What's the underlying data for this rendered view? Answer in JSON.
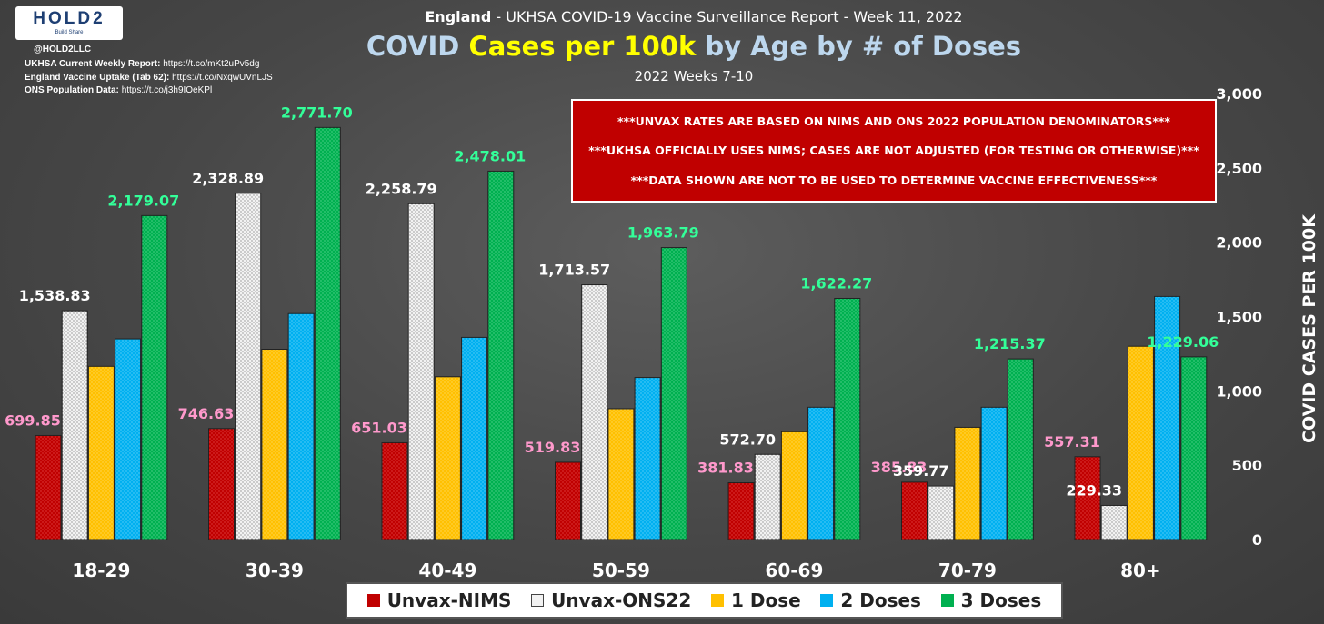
{
  "logo": {
    "text": "HOLD2",
    "tagline": "Build Share"
  },
  "handle": "@HOLD2LLC",
  "sources": [
    {
      "label": "UKHSA Current Weekly Report:",
      "url": "https://t.co/mKt2uPv5dg"
    },
    {
      "label": "England Vaccine Uptake (Tab 62):",
      "url": "https://t.co/NxqwUVnLJS"
    },
    {
      "label": "ONS Population Data:",
      "url": "https://t.co/j3h9IOeKPl"
    }
  ],
  "header": {
    "suptitle_bold": "England",
    "suptitle_rest": " - UKHSA COVID-19 Vaccine Surveillance Report - Week 11, 2022",
    "title_part1": "COVID ",
    "title_highlight": "Cases per 100k",
    "title_part2": " by Age by # of Doses",
    "subtitle": "2022 Weeks 7-10"
  },
  "notice_lines": [
    "***UNVAX RATES ARE BASED ON NIMS AND ONS 2022 POPULATION DENOMINATORS***",
    "***UKHSA OFFICIALLY USES NIMS; CASES ARE NOT ADJUSTED (FOR TESTING OR OTHERWISE)***",
    "***DATA SHOWN ARE NOT TO BE USED TO DETERMINE VACCINE EFFECTIVENESS***"
  ],
  "colors": {
    "unvax_nims": "#c00000",
    "unvax_ons": "#f2f2f2",
    "dose1": "#ffc000",
    "dose2": "#00b0f0",
    "dose3": "#00b050",
    "label_pink": "#ff99cc",
    "label_white": "#ffffff",
    "label_green": "#33ff99"
  },
  "chart_data": {
    "type": "bar",
    "title": "COVID Cases per 100k by Age by # of Doses",
    "subtitle": "2022 Weeks 7-10",
    "categories": [
      "18-29",
      "30-39",
      "40-49",
      "50-59",
      "60-69",
      "70-79",
      "80+"
    ],
    "series": [
      {
        "name": "Unvax-NIMS",
        "values": [
          699.85,
          746.63,
          651.03,
          519.83,
          381.83,
          385.83,
          557.31
        ],
        "labels": [
          "699.85",
          "746.63",
          "651.03",
          "519.83",
          "381.83",
          "385.83",
          "557.31"
        ]
      },
      {
        "name": "Unvax-ONS22",
        "values": [
          1538.83,
          2328.89,
          2258.79,
          1713.57,
          572.7,
          359.77,
          229.33
        ],
        "labels": [
          "1,538.83",
          "2,328.89",
          "2,258.79",
          "1,713.57",
          "572.70",
          "359.77",
          "229.33"
        ]
      },
      {
        "name": "1 Dose",
        "values": [
          1165,
          1280,
          1095,
          880,
          725,
          755,
          1300
        ]
      },
      {
        "name": "2 Doses",
        "values": [
          1350,
          1520,
          1360,
          1090,
          890,
          890,
          1635
        ]
      },
      {
        "name": "3 Doses",
        "values": [
          2179.07,
          2771.7,
          2478.01,
          1963.79,
          1622.27,
          1215.37,
          1229.06
        ],
        "labels": [
          "2,179.07",
          "2,771.70",
          "2,478.01",
          "1,963.79",
          "1,622.27",
          "1,215.37",
          "1,229.06"
        ]
      }
    ],
    "ylabel": "COVID CASES PER 100K",
    "ylim": [
      0,
      3000
    ],
    "yticks": [
      0,
      500,
      1000,
      1500,
      2000,
      2500,
      3000
    ],
    "ytick_labels": [
      "0",
      "500",
      "1,000",
      "1,500",
      "2,000",
      "2,500",
      "3,000"
    ],
    "y_axis_side": "right",
    "legend_position": "bottom"
  }
}
